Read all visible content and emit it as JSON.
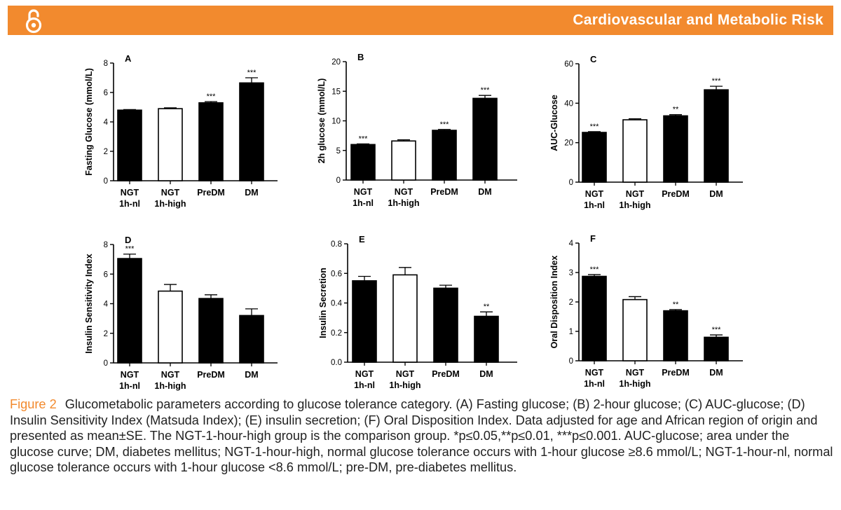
{
  "header": {
    "title": "Cardiovascular and Metabolic Risk",
    "accent": "#f28a2e"
  },
  "icons": {
    "open_access": "open-access-lock-icon"
  },
  "chart_data": [
    {
      "type": "bar",
      "panel": "A",
      "ylabel": "Fasting Glucose (mmol/L)",
      "ylim": [
        0,
        8
      ],
      "yticks": [
        "0",
        "2",
        "4",
        "6",
        "8"
      ],
      "categories": [
        [
          "NGT",
          "1h-nl"
        ],
        [
          "NGT",
          "1h-high"
        ],
        [
          "PreDM"
        ],
        [
          "DM"
        ]
      ],
      "values": [
        4.8,
        4.9,
        5.3,
        6.65
      ],
      "errors": [
        0.04,
        0.06,
        0.08,
        0.35
      ],
      "fills": [
        "black",
        "white",
        "black",
        "black"
      ],
      "sig": [
        "",
        "",
        "***",
        "***"
      ]
    },
    {
      "type": "bar",
      "panel": "B",
      "ylabel": "2h glucose (mmol/L)",
      "ylim": [
        0,
        20
      ],
      "yticks": [
        "0",
        "5",
        "10",
        "15",
        "20"
      ],
      "categories": [
        [
          "NGT",
          "1h-nl"
        ],
        [
          "NGT",
          "1h-high"
        ],
        [
          "PreDM"
        ],
        [
          "DM"
        ]
      ],
      "values": [
        6.0,
        6.6,
        8.4,
        13.8
      ],
      "errors": [
        0.1,
        0.2,
        0.15,
        0.5
      ],
      "fills": [
        "black",
        "white",
        "black",
        "black"
      ],
      "sig": [
        "***",
        "",
        "***",
        "***"
      ]
    },
    {
      "type": "bar",
      "panel": "C",
      "ylabel": "AUC-Glucose",
      "ylim": [
        0,
        60
      ],
      "yticks": [
        "0",
        "20",
        "40",
        "60"
      ],
      "categories": [
        [
          "NGT",
          "1h-nl"
        ],
        [
          "NGT",
          "1h-high"
        ],
        [
          "PreDM"
        ],
        [
          "DM"
        ]
      ],
      "values": [
        25.2,
        31.6,
        33.6,
        46.8
      ],
      "errors": [
        0.4,
        0.5,
        0.6,
        1.8
      ],
      "fills": [
        "black",
        "white",
        "black",
        "black"
      ],
      "sig": [
        "***",
        "",
        "**",
        "***"
      ]
    },
    {
      "type": "bar",
      "panel": "D",
      "ylabel": "Insulin Sensitivity Index",
      "ylim": [
        0,
        8
      ],
      "yticks": [
        "0",
        "2",
        "4",
        "6",
        "8"
      ],
      "categories": [
        [
          "NGT",
          "1h-nl"
        ],
        [
          "NGT",
          "1h-high"
        ],
        [
          "PreDM"
        ],
        [
          "DM"
        ]
      ],
      "values": [
        7.05,
        4.85,
        4.35,
        3.2
      ],
      "errors": [
        0.3,
        0.45,
        0.25,
        0.45
      ],
      "fills": [
        "black",
        "white",
        "black",
        "black"
      ],
      "sig": [
        "***",
        "",
        "",
        ""
      ]
    },
    {
      "type": "bar",
      "panel": "E",
      "ylabel": "Insulin Secretion",
      "ylim": [
        0,
        0.8
      ],
      "yticks": [
        "0.0",
        "0.2",
        "0.4",
        "0.6",
        "0.8"
      ],
      "categories": [
        [
          "NGT",
          "1h-nl"
        ],
        [
          "NGT",
          "1h-high"
        ],
        [
          "PreDM"
        ],
        [
          "DM"
        ]
      ],
      "values": [
        0.55,
        0.59,
        0.5,
        0.31
      ],
      "errors": [
        0.03,
        0.05,
        0.02,
        0.03
      ],
      "fills": [
        "black",
        "white",
        "black",
        "black"
      ],
      "sig": [
        "",
        "",
        "",
        "**"
      ]
    },
    {
      "type": "bar",
      "panel": "F",
      "ylabel": "Oral Disposition Index",
      "ylim": [
        0,
        4
      ],
      "yticks": [
        "0",
        "1",
        "2",
        "3",
        "4"
      ],
      "categories": [
        [
          "NGT",
          "1h-nl"
        ],
        [
          "NGT",
          "1h-high"
        ],
        [
          "PreDM"
        ],
        [
          "DM"
        ]
      ],
      "values": [
        2.87,
        2.08,
        1.7,
        0.8
      ],
      "errors": [
        0.06,
        0.1,
        0.04,
        0.08
      ],
      "fills": [
        "black",
        "white",
        "black",
        "black"
      ],
      "sig": [
        "***",
        "",
        "**",
        "***"
      ]
    }
  ],
  "caption": {
    "label": "Figure 2",
    "text": "Glucometabolic parameters according to glucose tolerance category. (A) Fasting glucose; (B) 2-hour glucose; (C) AUC-glucose; (D) Insulin Sensitivity Index (Matsuda Index); (E) insulin secretion; (F) Oral Disposition Index. Data adjusted for age and African region of origin and presented as mean±SE. The NGT-1-hour-high group is the comparison group. *p≤0.05,**p≤0.01, ***p≤0.001. AUC-glucose; area under the glucose curve; DM, diabetes mellitus; NGT-1-hour-high, normal glucose tolerance occurs with 1-hour glucose ≥8.6 mmol/L; NGT-1-hour-nl, normal glucose tolerance occurs with 1-hour glucose <8.6 mmol/L; pre-DM, pre-diabetes mellitus."
  }
}
